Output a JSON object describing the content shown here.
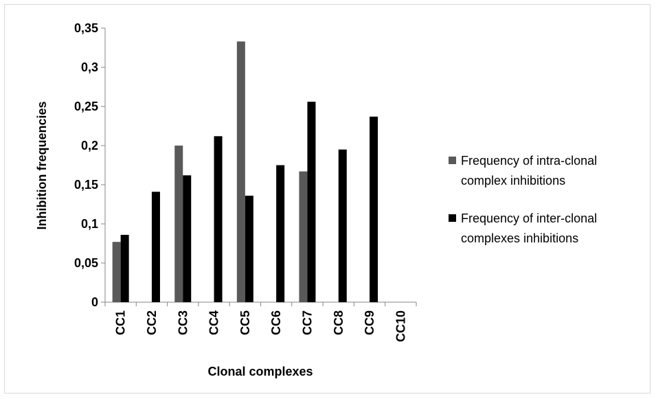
{
  "chart_data": {
    "type": "bar",
    "title": "",
    "xlabel": "Clonal complexes",
    "ylabel": "Inhibition frequencies",
    "categories": [
      "CC1",
      "CC2",
      "CC3",
      "CC4",
      "CC5",
      "CC6",
      "CC7",
      "CC8",
      "CC9",
      "CC10"
    ],
    "series": [
      {
        "name": "Frequency of intra-clonal complex inhibitions",
        "legend_lines": [
          "Frequency of intra-clonal",
          "complex inhibitions"
        ],
        "color": "#595959",
        "values": [
          0.077,
          0,
          0.2,
          0,
          0.333,
          0,
          0.167,
          0,
          0,
          0
        ]
      },
      {
        "name": "Frequency of inter-clonal complexes inhibitions",
        "legend_lines": [
          "Frequency of inter-clonal",
          "complexes inhibitions"
        ],
        "color": "#000000",
        "values": [
          0.086,
          0.141,
          0.162,
          0.212,
          0.136,
          0.175,
          0.256,
          0.195,
          0.237,
          0
        ]
      }
    ],
    "ylim": [
      0,
      0.35
    ],
    "yticks": [
      "0",
      "0,05",
      "0,1",
      "0,15",
      "0,2",
      "0,25",
      "0,3",
      "0,35"
    ],
    "grid": false,
    "legend_position": "right"
  }
}
